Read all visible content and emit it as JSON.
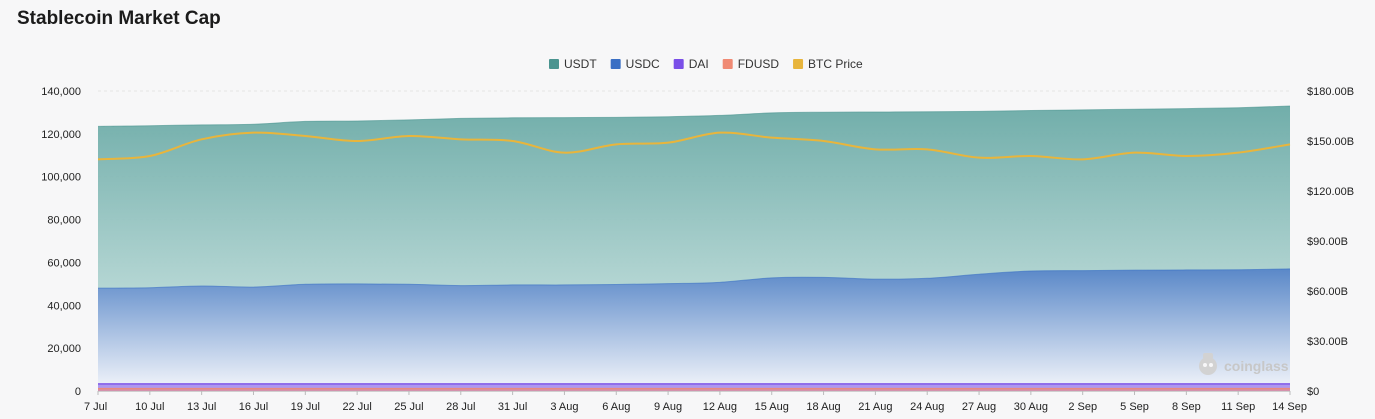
{
  "title": "Stablecoin Market Cap",
  "watermark": "coinglass",
  "chart_data": {
    "type": "area",
    "title": "Stablecoin Market Cap",
    "x_categories": [
      "7 Jul",
      "10 Jul",
      "13 Jul",
      "16 Jul",
      "19 Jul",
      "22 Jul",
      "25 Jul",
      "28 Jul",
      "31 Jul",
      "3 Aug",
      "6 Aug",
      "9 Aug",
      "12 Aug",
      "15 Aug",
      "18 Aug",
      "21 Aug",
      "24 Aug",
      "27 Aug",
      "30 Aug",
      "2 Sep",
      "5 Sep",
      "8 Sep",
      "11 Sep",
      "14 Sep"
    ],
    "y_left": {
      "ylim": [
        0,
        140000
      ],
      "ticks": [
        "0",
        "20,000",
        "40,000",
        "60,000",
        "80,000",
        "100,000",
        "120,000",
        "140,000"
      ]
    },
    "y_right": {
      "ylim": [
        0,
        180
      ],
      "unit": "B",
      "ticks": [
        "$0",
        "$30.00B",
        "$60.00B",
        "$90.00B",
        "$120.00B",
        "$150.00B",
        "$180.00B"
      ]
    },
    "legend": {
      "position": "top-center"
    },
    "grid": true,
    "series": [
      {
        "name": "USDT",
        "color": "#4a9490",
        "axis": "left",
        "kind": "area",
        "values": [
          123500,
          123800,
          124200,
          124500,
          125800,
          126000,
          126500,
          127200,
          127500,
          127600,
          127700,
          128000,
          128600,
          129800,
          130100,
          130200,
          130300,
          130500,
          130900,
          131200,
          131500,
          131800,
          132200,
          133000
        ]
      },
      {
        "name": "USDC",
        "color": "#3a6fc4",
        "axis": "left",
        "kind": "area",
        "values": [
          48000,
          48200,
          49000,
          48500,
          49800,
          50000,
          49800,
          49200,
          49500,
          49500,
          49700,
          50100,
          50700,
          52800,
          53000,
          52200,
          52600,
          54500,
          56000,
          56200,
          56400,
          56500,
          56600,
          57000
        ]
      },
      {
        "name": "DAI",
        "color": "#7a4fe8",
        "axis": "left",
        "kind": "area",
        "values": [
          3300,
          3300,
          3300,
          3300,
          3300,
          3300,
          3300,
          3300,
          3300,
          3300,
          3300,
          3300,
          3300,
          3300,
          3300,
          3300,
          3300,
          3300,
          3300,
          3300,
          3300,
          3300,
          3300,
          3300
        ]
      },
      {
        "name": "FDUSD",
        "color": "#f08a74",
        "axis": "left",
        "kind": "area",
        "values": [
          1100,
          1100,
          1100,
          1100,
          1100,
          1100,
          1100,
          1100,
          1100,
          1100,
          1100,
          1100,
          1100,
          1100,
          1100,
          1100,
          1100,
          1100,
          1100,
          1100,
          1100,
          1100,
          1100,
          1100
        ]
      },
      {
        "name": "BTC Price",
        "color": "#e8b53c",
        "axis": "right",
        "kind": "line",
        "values": [
          139,
          141,
          151,
          155,
          153,
          150,
          153,
          151,
          150,
          143,
          148,
          149,
          155,
          152,
          150,
          145,
          145,
          140,
          141,
          139,
          143,
          141,
          143,
          148
        ]
      }
    ]
  }
}
